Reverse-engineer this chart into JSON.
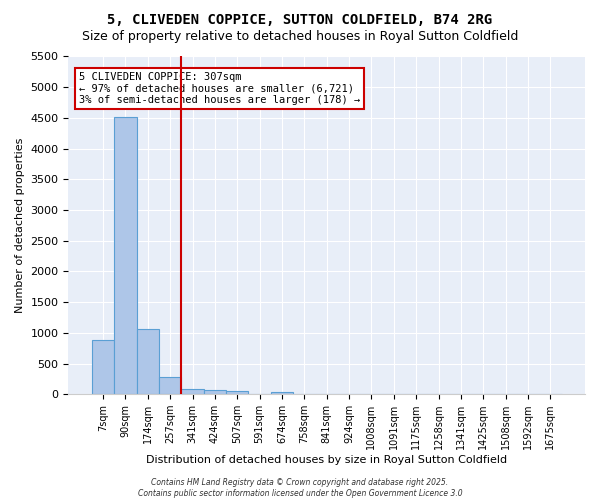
{
  "title1": "5, CLIVEDEN COPPICE, SUTTON COLDFIELD, B74 2RG",
  "title2": "Size of property relative to detached houses in Royal Sutton Coldfield",
  "xlabel": "Distribution of detached houses by size in Royal Sutton Coldfield",
  "ylabel": "Number of detached properties",
  "bar_values": [
    880,
    4520,
    1070,
    285,
    80,
    70,
    45,
    0,
    40,
    0,
    0,
    0,
    0,
    0,
    0,
    0,
    0,
    0,
    0,
    0,
    0
  ],
  "bar_labels": [
    "7sqm",
    "90sqm",
    "174sqm",
    "257sqm",
    "341sqm",
    "424sqm",
    "507sqm",
    "591sqm",
    "674sqm",
    "758sqm",
    "841sqm",
    "924sqm",
    "1008sqm",
    "1091sqm",
    "1175sqm",
    "1258sqm",
    "1341sqm",
    "1425sqm",
    "1508sqm",
    "1592sqm",
    "1675sqm"
  ],
  "bar_color": "#aec6e8",
  "bar_edge_color": "#5a9fd4",
  "annotation_text": "5 CLIVEDEN COPPICE: 307sqm\n← 97% of detached houses are smaller (6,721)\n3% of semi-detached houses are larger (178) →",
  "vline_x": 3.5,
  "vline_color": "#cc0000",
  "annotation_box_edge": "#cc0000",
  "ylim": [
    0,
    5500
  ],
  "yticks": [
    0,
    500,
    1000,
    1500,
    2000,
    2500,
    3000,
    3500,
    4000,
    4500,
    5000,
    5500
  ],
  "bg_color": "#e8eef8",
  "footer": "Contains HM Land Registry data © Crown copyright and database right 2025.\nContains public sector information licensed under the Open Government Licence 3.0"
}
